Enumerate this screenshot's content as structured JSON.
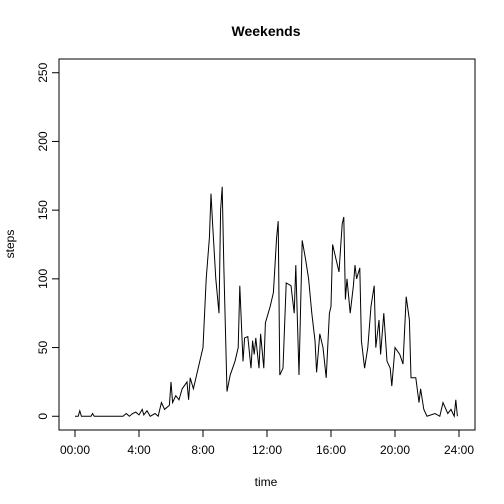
{
  "chart_data": {
    "type": "line",
    "title": "Weekends",
    "xlabel": "time",
    "ylabel": "steps",
    "color": "#000000",
    "x": [
      0,
      0.2,
      0.3,
      0.4,
      1,
      1.1,
      1.2,
      2,
      3,
      3.2,
      3.4,
      3.6,
      3.8,
      4,
      4.2,
      4.3,
      4.5,
      4.7,
      5,
      5.2,
      5.4,
      5.6,
      5.9,
      6,
      6.1,
      6.3,
      6.5,
      6.7,
      7,
      7.1,
      7.2,
      7.4,
      7.6,
      7.8,
      8,
      8.2,
      8.4,
      8.5,
      8.6,
      8.8,
      9,
      9.1,
      9.2,
      9.3,
      9.5,
      9.7,
      10,
      10.2,
      10.3,
      10.5,
      10.6,
      10.8,
      11,
      11.1,
      11.2,
      11.3,
      11.5,
      11.6,
      11.8,
      11.9,
      12.2,
      12.4,
      12.6,
      12.7,
      12.8,
      13,
      13.2,
      13.5,
      13.7,
      13.8,
      14,
      14.2,
      14.4,
      14.6,
      14.8,
      15,
      15.1,
      15.3,
      15.5,
      15.7,
      15.9,
      16,
      16.1,
      16.3,
      16.5,
      16.7,
      16.8,
      16.9,
      17,
      17.2,
      17.4,
      17.5,
      17.6,
      17.8,
      17.9,
      18.1,
      18.3,
      18.5,
      18.7,
      18.8,
      19,
      19.1,
      19.3,
      19.5,
      19.7,
      19.8,
      20,
      20.3,
      20.5,
      20.7,
      20.9,
      21,
      21.3,
      21.5,
      21.6,
      21.8,
      22,
      22.5,
      22.8,
      23,
      23.3,
      23.5,
      23.7,
      23.8,
      23.9
    ],
    "values": [
      0,
      0,
      4,
      0,
      0,
      2,
      0,
      0,
      0,
      2,
      0,
      2,
      3,
      1,
      5,
      1,
      4,
      0,
      2,
      0,
      10,
      5,
      8,
      25,
      10,
      15,
      12,
      20,
      25,
      12,
      28,
      20,
      30,
      40,
      50,
      100,
      130,
      162,
      140,
      100,
      75,
      150,
      167,
      110,
      18,
      30,
      40,
      50,
      95,
      40,
      57,
      58,
      35,
      55,
      45,
      57,
      35,
      60,
      35,
      68,
      80,
      90,
      130,
      142,
      30,
      35,
      97,
      95,
      75,
      110,
      30,
      128,
      115,
      100,
      75,
      55,
      32,
      60,
      50,
      28,
      75,
      80,
      125,
      115,
      105,
      140,
      145,
      85,
      100,
      75,
      95,
      110,
      100,
      108,
      55,
      35,
      50,
      80,
      95,
      50,
      70,
      45,
      75,
      40,
      35,
      22,
      50,
      45,
      38,
      87,
      70,
      28,
      28,
      10,
      20,
      5,
      0,
      2,
      0,
      10,
      2,
      5,
      0,
      12,
      0
    ],
    "xlim": [
      -1,
      25
    ],
    "ylim": [
      -10,
      260
    ],
    "xticks": [
      {
        "value": 0,
        "label": "00:00"
      },
      {
        "value": 4,
        "label": "4:00"
      },
      {
        "value": 8,
        "label": "8:00"
      },
      {
        "value": 12,
        "label": "12:00"
      },
      {
        "value": 16,
        "label": "16:00"
      },
      {
        "value": 20,
        "label": "20:00"
      },
      {
        "value": 24,
        "label": "24:00"
      }
    ],
    "yticks": [
      0,
      50,
      100,
      150,
      200,
      250
    ]
  }
}
